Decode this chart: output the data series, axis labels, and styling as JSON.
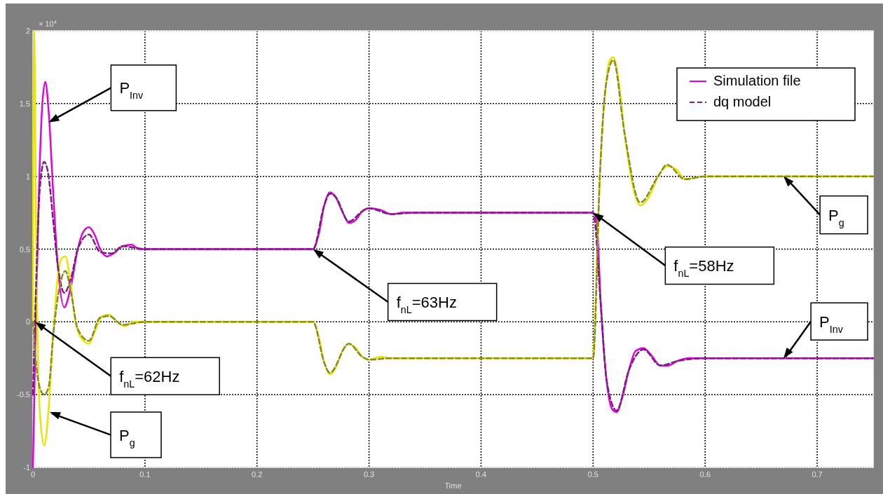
{
  "chart_data": {
    "type": "line",
    "xlabel": "Time",
    "xlim": [
      0,
      0.75
    ],
    "xticks": [
      0,
      0.1,
      0.2,
      0.3,
      0.4,
      0.5,
      0.6,
      0.7
    ],
    "ylim": [
      -1,
      2
    ],
    "yticks": [
      -1,
      -0.5,
      0,
      0.5,
      1,
      1.5,
      2
    ],
    "grid": true,
    "legend": "top right",
    "marker": "none",
    "series": [
      {
        "name": "Simulation file",
        "color": "#e000e0",
        "line_style": "solid",
        "x": [
          0,
          0.002,
          0.005,
          0.008,
          0.011,
          0.014,
          0.018,
          0.022,
          0.028,
          0.034,
          0.04,
          0.045,
          0.05,
          0.055,
          0.06,
          0.066,
          0.072,
          0.08,
          0.088,
          0.095,
          0.1,
          0.25,
          0.255,
          0.26,
          0.265,
          0.27,
          0.276,
          0.282,
          0.288,
          0.294,
          0.3,
          0.31,
          0.32,
          0.33,
          0.34,
          0.5,
          0.503,
          0.507,
          0.512,
          0.517,
          0.521,
          0.526,
          0.532,
          0.538,
          0.545,
          0.552,
          0.56,
          0.567,
          0.575,
          0.585,
          0.6,
          0.75
        ],
        "values": [
          -1,
          -0.2,
          0.8,
          1.45,
          1.65,
          1.45,
          0.9,
          0.4,
          0.1,
          0.25,
          0.5,
          0.62,
          0.65,
          0.6,
          0.5,
          0.45,
          0.47,
          0.52,
          0.53,
          0.5,
          0.5,
          0.5,
          0.6,
          0.8,
          0.89,
          0.86,
          0.76,
          0.68,
          0.7,
          0.76,
          0.78,
          0.77,
          0.74,
          0.75,
          0.75,
          0.75,
          0.7,
          0.1,
          -0.4,
          -0.6,
          -0.62,
          -0.52,
          -0.33,
          -0.2,
          -0.18,
          -0.23,
          -0.3,
          -0.3,
          -0.27,
          -0.25,
          -0.25,
          -0.25
        ]
      },
      {
        "color": "#e6e600",
        "line_style": "solid",
        "x": [
          0,
          0.001,
          0.003,
          0.006,
          0.01,
          0.014,
          0.018,
          0.022,
          0.026,
          0.029,
          0.033,
          0.038,
          0.044,
          0.05,
          0.056,
          0.062,
          0.068,
          0.075,
          0.082,
          0.09,
          0.1,
          0.25,
          0.255,
          0.26,
          0.265,
          0.27,
          0.276,
          0.282,
          0.288,
          0.294,
          0.3,
          0.31,
          0.32,
          0.33,
          0.5,
          0.502,
          0.506,
          0.511,
          0.515,
          0.518,
          0.522,
          0.528,
          0.535,
          0.542,
          0.55,
          0.558,
          0.566,
          0.574,
          0.582,
          0.59,
          0.6,
          0.75
        ],
        "values": [
          0,
          2,
          0.5,
          -0.6,
          -0.85,
          -0.6,
          -0.1,
          0.3,
          0.44,
          0.45,
          0.3,
          0,
          -0.12,
          -0.15,
          -0.05,
          0.04,
          0.05,
          0,
          -0.03,
          0,
          0,
          0,
          -0.1,
          -0.28,
          -0.36,
          -0.32,
          -0.2,
          -0.15,
          -0.18,
          -0.24,
          -0.26,
          -0.24,
          -0.25,
          -0.25,
          -0.25,
          0.1,
          1.0,
          1.6,
          1.8,
          1.82,
          1.7,
          1.3,
          0.95,
          0.8,
          0.86,
          1.0,
          1.07,
          1.05,
          0.98,
          0.99,
          1.0,
          1.0
        ]
      },
      {
        "name": "dq model",
        "color": "#7a207a",
        "line_style": "dashed",
        "x": [
          0,
          0.003,
          0.006,
          0.01,
          0.014,
          0.018,
          0.022,
          0.028,
          0.034,
          0.04,
          0.05,
          0.06,
          0.07,
          0.08,
          0.09,
          0.1,
          0.25,
          0.26,
          0.265,
          0.27,
          0.282,
          0.294,
          0.3,
          0.32,
          0.34,
          0.5,
          0.507,
          0.512,
          0.521,
          0.532,
          0.545,
          0.56,
          0.575,
          0.6,
          0.75
        ],
        "values": [
          -0.5,
          0.3,
          0.9,
          1.1,
          1.0,
          0.7,
          0.4,
          0.2,
          0.3,
          0.5,
          0.6,
          0.48,
          0.47,
          0.52,
          0.51,
          0.5,
          0.5,
          0.8,
          0.88,
          0.86,
          0.69,
          0.76,
          0.78,
          0.74,
          0.75,
          0.75,
          0.1,
          -0.4,
          -0.61,
          -0.33,
          -0.19,
          -0.3,
          -0.27,
          -0.25,
          -0.25
        ]
      },
      {
        "color": "#8a8a20",
        "line_style": "dashed",
        "x": [
          0,
          0.003,
          0.006,
          0.01,
          0.014,
          0.018,
          0.024,
          0.029,
          0.034,
          0.04,
          0.05,
          0.06,
          0.068,
          0.08,
          0.1,
          0.25,
          0.26,
          0.265,
          0.282,
          0.294,
          0.3,
          0.32,
          0.5,
          0.506,
          0.511,
          0.518,
          0.528,
          0.542,
          0.558,
          0.566,
          0.582,
          0.6,
          0.75
        ],
        "values": [
          0,
          -0.3,
          -0.45,
          -0.5,
          -0.45,
          -0.1,
          0.25,
          0.35,
          0.2,
          -0.05,
          -0.13,
          0.03,
          0.04,
          -0.02,
          0,
          0,
          -0.28,
          -0.35,
          -0.15,
          -0.24,
          -0.26,
          -0.25,
          -0.25,
          1.0,
          1.6,
          1.8,
          1.3,
          0.82,
          1.0,
          1.08,
          0.98,
          1.0,
          1.0
        ]
      }
    ],
    "annotations": [
      "× 10$^{4}$",
      {
        "text": "P$_{Inv}$",
        "x": 0.014,
        "y": 1.37
      },
      {
        "text": "f$_{nL}$=62Hz",
        "x": 0.002,
        "y": 0
      },
      {
        "text": "P$_{g}$",
        "x": 0.015,
        "y": -0.62
      },
      {
        "text": "f$_{nL}$=63Hz",
        "x": 0.25,
        "y": 0.5
      },
      {
        "text": "f$_{nL}$=58Hz",
        "x": 0.5,
        "y": 0.75
      },
      {
        "text": "P$_{g}$",
        "x": 0.67,
        "y": 1.0
      },
      {
        "text": "P$_{Inv}$",
        "x": 0.67,
        "y": -0.25
      }
    ]
  }
}
